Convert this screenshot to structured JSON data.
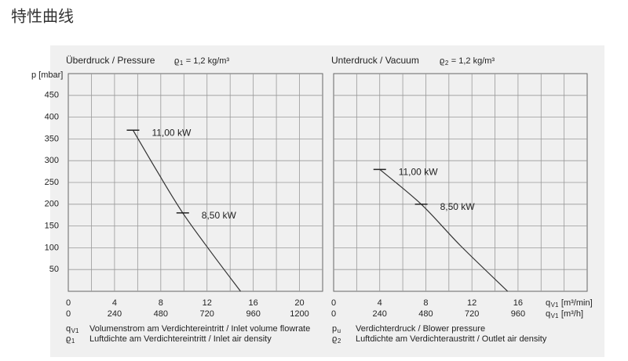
{
  "page_title": "特性曲线",
  "y_axis_label": "p [mbar]",
  "x_axis_labels": [
    {
      "symbol": "q",
      "sub": "V1",
      "text": "[m³/min]"
    },
    {
      "symbol": "q",
      "sub": "V1",
      "text": "[m³/h]"
    }
  ],
  "legend": [
    {
      "symbol": "q",
      "sub": "V1",
      "text": "Volumenstrom am Verdichtereintritt / Inlet volume flowrate"
    },
    {
      "symbol": "ϱ",
      "sub": "1",
      "text": "Luftdichte am Verdichtereintritt / Inlet air density"
    },
    {
      "symbol": "p",
      "sub": "u",
      "text": "Verdichterdruck / Blower pressure"
    },
    {
      "symbol": "ϱ",
      "sub": "2",
      "text": "Luftdichte am Verdichteraustritt / Outlet air density"
    }
  ],
  "chart_data": [
    {
      "type": "line",
      "title": "Überdruck / Pressure",
      "density": {
        "symbol": "ϱ",
        "sub": "1",
        "text": "= 1,2 kg/m³"
      },
      "x": [
        5.6,
        7.7,
        9.9,
        12.4,
        14.9
      ],
      "values": [
        370,
        275,
        180,
        88,
        0
      ],
      "color": "#333333",
      "annotations": [
        {
          "text": "11,00 kW",
          "x": 5.6,
          "y": 370
        },
        {
          "text": "8,50 kW",
          "x": 9.9,
          "y": 180
        }
      ],
      "xlim": [
        0,
        22
      ],
      "ylim": [
        0,
        500
      ],
      "x2lim": [
        0,
        1320
      ],
      "xticks": [
        0,
        4,
        8,
        12,
        16,
        20
      ],
      "x2ticks": [
        0,
        240,
        480,
        720,
        960,
        1200
      ],
      "yticks": [
        50,
        100,
        150,
        200,
        250,
        300,
        350,
        400,
        450
      ],
      "grid": true
    },
    {
      "type": "line",
      "title": "Unterdruck / Vacuum",
      "density": {
        "symbol": "ϱ",
        "sub": "2",
        "text": "= 1,2 kg/m³"
      },
      "x": [
        4.0,
        7.6,
        11.0,
        15.1
      ],
      "values": [
        280,
        200,
        105,
        0
      ],
      "color": "#333333",
      "annotations": [
        {
          "text": "11,00 kW",
          "x": 4.0,
          "y": 280
        },
        {
          "text": "8,50 kW",
          "x": 7.6,
          "y": 200
        }
      ],
      "xlim": [
        0,
        22
      ],
      "ylim": [
        0,
        500
      ],
      "x2lim": [
        0,
        1320
      ],
      "xticks": [
        0,
        4,
        8,
        12,
        16
      ],
      "x2ticks": [
        0,
        240,
        480,
        720,
        960
      ],
      "ygrid": [
        50,
        100,
        150,
        200,
        250,
        300,
        350,
        400,
        450
      ],
      "grid": true
    }
  ]
}
